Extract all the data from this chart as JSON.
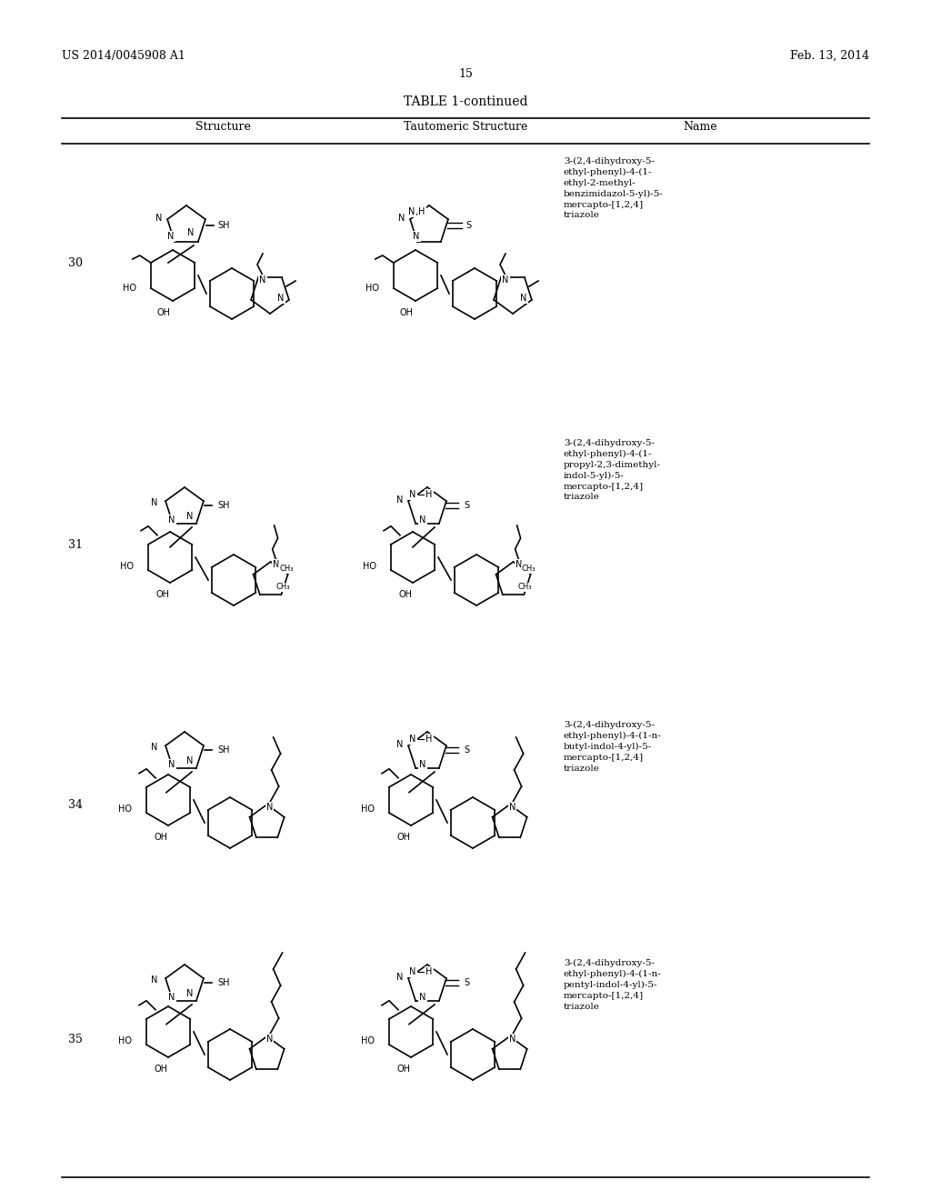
{
  "page_num": "15",
  "patent_left": "US 2014/0045908 A1",
  "patent_right": "Feb. 13, 2014",
  "table_title": "TABLE 1-continued",
  "col_headers": [
    "Structure",
    "Tautomeric Structure",
    "Name"
  ],
  "bg_color": "#ffffff",
  "text_color": "#000000",
  "font_size_header": 9,
  "font_size_body": 7.5,
  "font_size_page": 9,
  "rows": [
    {
      "num": "30",
      "name": "3-(2,4-dihydroxy-5-\nethyl-phenyl)-4-(1-\nethyl-2-methyl-\nbenzimidazol-5-yl)-5-\nmercapto-[1,2,4]\ntriazole"
    },
    {
      "num": "31",
      "name": "3-(2,4-dihydroxy-5-\nethyl-phenyl)-4-(1-\npropyl-2,3-dimethyl-\nindol-5-yl)-5-\nmercapto-[1,2,4]\ntriazole"
    },
    {
      "num": "34",
      "name": "3-(2,4-dihydroxy-5-\nethyl-phenyl)-4-(1-n-\nbutyl-indol-4-yl)-5-\nmercapto-[1,2,4]\ntriazole"
    },
    {
      "num": "35",
      "name": "3-(2,4-dihydroxy-5-\nethyl-phenyl)-4-(1-n-\npentyl-indol-4-yl)-5-\nmercapto-[1,2,4]\ntriazole"
    }
  ]
}
